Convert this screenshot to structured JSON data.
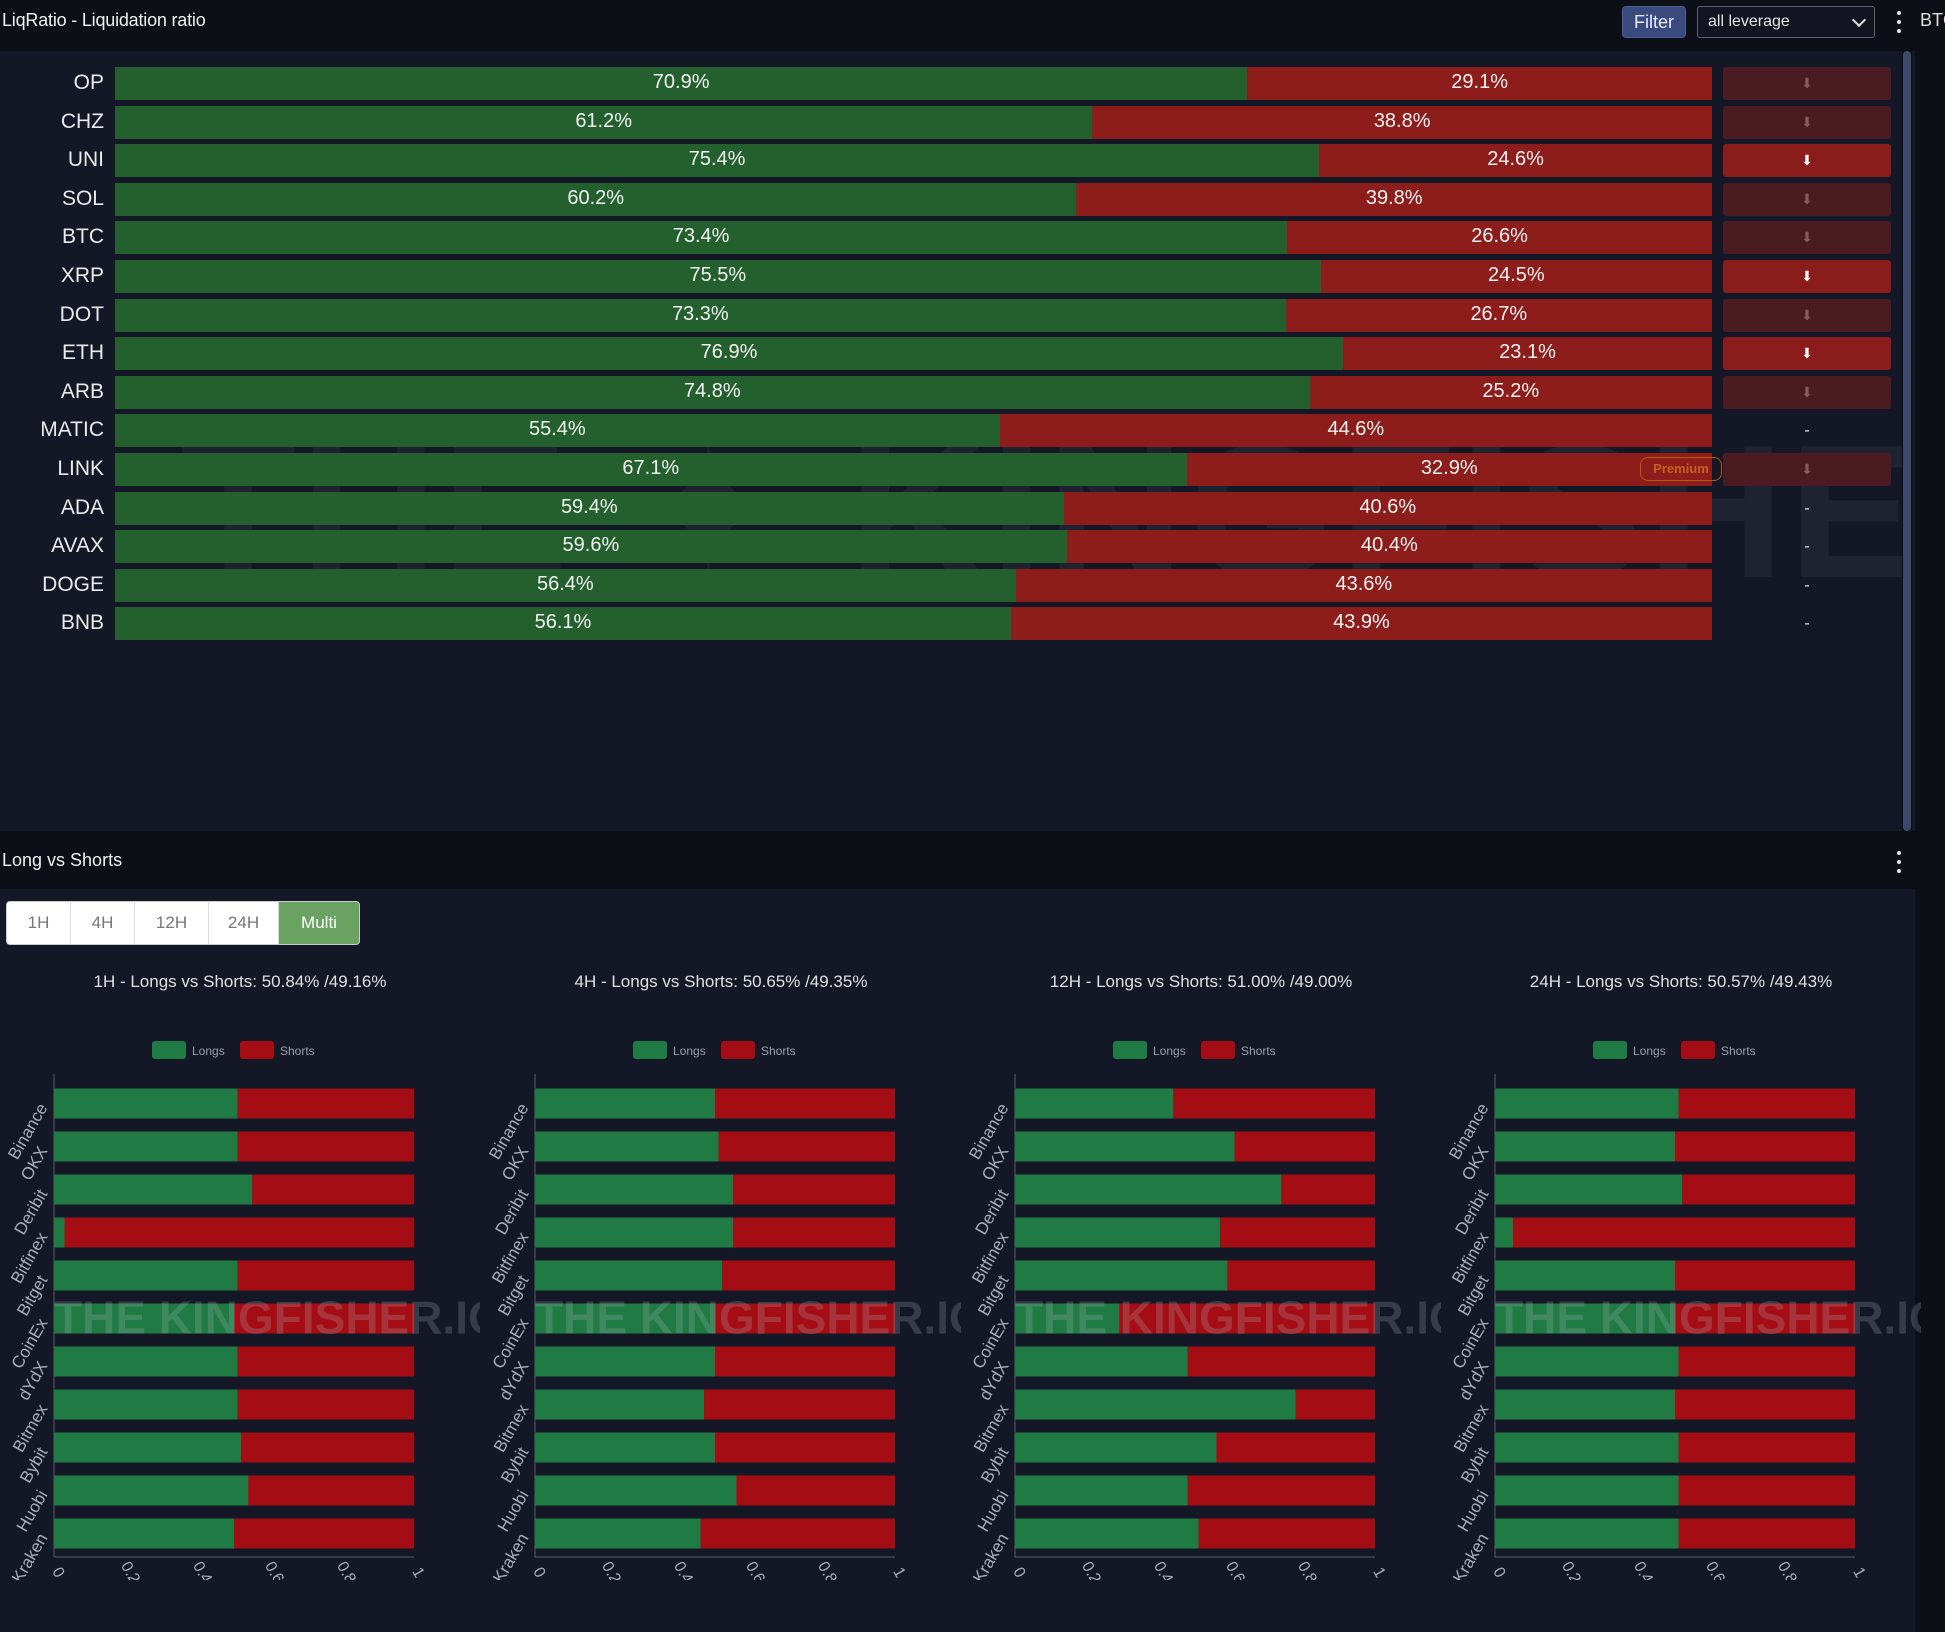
{
  "liq_panel": {
    "title": "LiqRatio - Liquidation ratio",
    "filter_label": "Filter",
    "leverage_value": "all leverage",
    "side_cut_label": "BTC",
    "premium_badge": "Premium",
    "watermark": "THE KINGFISHER.IO",
    "colors": {
      "long": "#23602e",
      "short": "#8c1d1b"
    },
    "rows": [
      {
        "symbol": "OP",
        "long": 70.9,
        "long_label": "70.9%",
        "short_label": "29.1%",
        "trend": "dim",
        "trend_text": "⬇"
      },
      {
        "symbol": "CHZ",
        "long": 61.2,
        "long_label": "61.2%",
        "short_label": "38.8%",
        "trend": "dim",
        "trend_text": "⬇"
      },
      {
        "symbol": "UNI",
        "long": 75.4,
        "long_label": "75.4%",
        "short_label": "24.6%",
        "trend": "strong",
        "trend_text": "⬇"
      },
      {
        "symbol": "SOL",
        "long": 60.2,
        "long_label": "60.2%",
        "short_label": "39.8%",
        "trend": "dim",
        "trend_text": "⬇"
      },
      {
        "symbol": "BTC",
        "long": 73.4,
        "long_label": "73.4%",
        "short_label": "26.6%",
        "trend": "dim",
        "trend_text": "⬇"
      },
      {
        "symbol": "XRP",
        "long": 75.5,
        "long_label": "75.5%",
        "short_label": "24.5%",
        "trend": "strong",
        "trend_text": "⬇"
      },
      {
        "symbol": "DOT",
        "long": 73.3,
        "long_label": "73.3%",
        "short_label": "26.7%",
        "trend": "dim",
        "trend_text": "⬇"
      },
      {
        "symbol": "ETH",
        "long": 76.9,
        "long_label": "76.9%",
        "short_label": "23.1%",
        "trend": "strong",
        "trend_text": "⬇"
      },
      {
        "symbol": "ARB",
        "long": 74.8,
        "long_label": "74.8%",
        "short_label": "25.2%",
        "trend": "dim",
        "trend_text": "⬇"
      },
      {
        "symbol": "MATIC",
        "long": 55.4,
        "long_label": "55.4%",
        "short_label": "44.6%",
        "trend": "none",
        "trend_text": "-"
      },
      {
        "symbol": "LINK",
        "long": 67.1,
        "long_label": "67.1%",
        "short_label": "32.9%",
        "trend": "dim",
        "trend_text": "⬇"
      },
      {
        "symbol": "ADA",
        "long": 59.4,
        "long_label": "59.4%",
        "short_label": "40.6%",
        "trend": "none",
        "trend_text": "-"
      },
      {
        "symbol": "AVAX",
        "long": 59.6,
        "long_label": "59.6%",
        "short_label": "40.4%",
        "trend": "none",
        "trend_text": "-"
      },
      {
        "symbol": "DOGE",
        "long": 56.4,
        "long_label": "56.4%",
        "short_label": "43.6%",
        "trend": "none",
        "trend_text": "-"
      },
      {
        "symbol": "BNB",
        "long": 56.1,
        "long_label": "56.1%",
        "short_label": "43.9%",
        "trend": "none",
        "trend_text": "-"
      }
    ]
  },
  "lvs_panel": {
    "title": "Long vs Shorts",
    "tabs": [
      "1H",
      "4H",
      "12H",
      "24H",
      "Multi"
    ],
    "active_tab": "Multi"
  },
  "chart_data": [
    {
      "type": "bar",
      "title": "1H - Longs vs Shorts: 50.84% /49.16%",
      "categories": [
        "Binance",
        "OKX",
        "Deribit",
        "Bitfinex",
        "Bitget",
        "CoinEx",
        "dYdX",
        "Bitmex",
        "Bybit",
        "Huobi",
        "Kraken"
      ],
      "series": [
        {
          "name": "Longs",
          "color": "#1f7a43",
          "values": [
            0.51,
            0.51,
            0.55,
            0.03,
            0.51,
            0.5,
            0.51,
            0.51,
            0.52,
            0.54,
            0.5
          ]
        },
        {
          "name": "Shorts",
          "color": "#a50d14",
          "values": [
            0.49,
            0.49,
            0.45,
            0.97,
            0.49,
            0.5,
            0.49,
            0.49,
            0.48,
            0.46,
            0.5
          ]
        }
      ],
      "xlim": [
        0,
        1
      ],
      "xticks": [
        "0",
        "0.2",
        "0.4",
        "0.6",
        "0.8",
        "1"
      ],
      "legend": "top",
      "watermark": "THE KINGFISHER.IO"
    },
    {
      "type": "bar",
      "title": "4H - Longs vs Shorts: 50.65% /49.35%",
      "categories": [
        "Binance",
        "OKX",
        "Deribit",
        "Bitfinex",
        "Bitget",
        "CoinEx",
        "dYdX",
        "Bitmex",
        "Bybit",
        "Huobi",
        "Kraken"
      ],
      "series": [
        {
          "name": "Longs",
          "color": "#1f7a43",
          "values": [
            0.5,
            0.51,
            0.55,
            0.55,
            0.52,
            0.5,
            0.5,
            0.47,
            0.5,
            0.56,
            0.46
          ]
        },
        {
          "name": "Shorts",
          "color": "#a50d14",
          "values": [
            0.5,
            0.49,
            0.45,
            0.45,
            0.48,
            0.5,
            0.5,
            0.53,
            0.5,
            0.44,
            0.54
          ]
        }
      ],
      "xlim": [
        0,
        1
      ],
      "xticks": [
        "0",
        "0.2",
        "0.4",
        "0.6",
        "0.8",
        "1"
      ],
      "legend": "top",
      "watermark": "THE KINGFISHER.IO"
    },
    {
      "type": "bar",
      "title": "12H - Longs vs Shorts: 51.00% /49.00%",
      "categories": [
        "Binance",
        "OKX",
        "Deribit",
        "Bitfinex",
        "Bitget",
        "CoinEx",
        "dYdX",
        "Bitmex",
        "Bybit",
        "Huobi",
        "Kraken"
      ],
      "series": [
        {
          "name": "Longs",
          "color": "#1f7a43",
          "values": [
            0.44,
            0.61,
            0.74,
            0.57,
            0.59,
            0.29,
            0.48,
            0.78,
            0.56,
            0.48,
            0.51
          ]
        },
        {
          "name": "Shorts",
          "color": "#a50d14",
          "values": [
            0.56,
            0.39,
            0.26,
            0.43,
            0.41,
            0.71,
            0.52,
            0.22,
            0.44,
            0.52,
            0.49
          ]
        }
      ],
      "xlim": [
        0,
        1
      ],
      "xticks": [
        "0",
        "0.2",
        "0.4",
        "0.6",
        "0.8",
        "1"
      ],
      "legend": "top",
      "watermark": "THE KINGFISHER.IO"
    },
    {
      "type": "bar",
      "title": "24H - Longs vs Shorts: 50.57% /49.43%",
      "categories": [
        "Binance",
        "OKX",
        "Deribit",
        "Bitfinex",
        "Bitget",
        "CoinEx",
        "dYdX",
        "Bitmex",
        "Bybit",
        "Huobi",
        "Kraken"
      ],
      "series": [
        {
          "name": "Longs",
          "color": "#1f7a43",
          "values": [
            0.51,
            0.5,
            0.52,
            0.05,
            0.5,
            0.5,
            0.51,
            0.5,
            0.51,
            0.51,
            0.51
          ]
        },
        {
          "name": "Shorts",
          "color": "#a50d14",
          "values": [
            0.49,
            0.5,
            0.48,
            0.95,
            0.5,
            0.5,
            0.49,
            0.5,
            0.49,
            0.49,
            0.49
          ]
        }
      ],
      "xlim": [
        0,
        1
      ],
      "xticks": [
        "0",
        "0.2",
        "0.4",
        "0.6",
        "0.8",
        "1"
      ],
      "legend": "top",
      "watermark": "THE KINGFISHER.IO"
    }
  ]
}
